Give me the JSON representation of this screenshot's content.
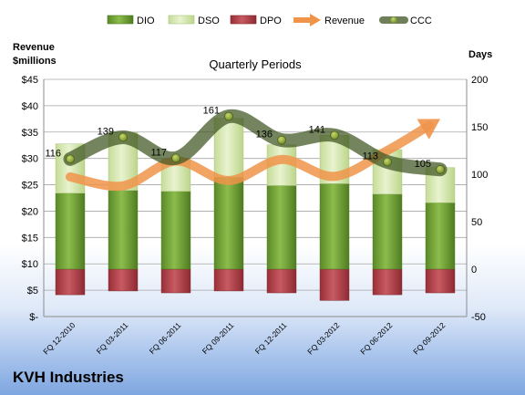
{
  "company": "KVH Industries",
  "chart_data": {
    "type": "combo",
    "title": "Quarterly Periods",
    "left_axis_label": [
      "Revenue",
      "$millions"
    ],
    "right_axis_label": "Days",
    "left_axis": {
      "min": 0,
      "max": 45,
      "step": 5,
      "ticks": [
        "$-",
        "$5",
        "$10",
        "$15",
        "$20",
        "$25",
        "$30",
        "$35",
        "$40",
        "$45"
      ]
    },
    "right_axis": {
      "min": -50,
      "max": 200,
      "step": 50,
      "ticks": [
        "-50",
        "0",
        "50",
        "100",
        "150",
        "200"
      ]
    },
    "categories": [
      "FQ 12-2010",
      "FQ 03-2011",
      "FQ 06-2011",
      "FQ 09-2011",
      "FQ 12-2011",
      "FQ 03-2012",
      "FQ 06-2012",
      "FQ 09-2012"
    ],
    "series": [
      {
        "name": "DIO",
        "type": "stacked-bar",
        "axis": "right",
        "color": "#76a33a",
        "values": [
          80,
          83,
          82,
          97,
          88,
          90,
          79,
          70
        ]
      },
      {
        "name": "DSO",
        "type": "stacked-bar",
        "axis": "right",
        "color": "#d6e8ad",
        "values": [
          52,
          61,
          34,
          62,
          43,
          51,
          47,
          37
        ]
      },
      {
        "name": "DPO",
        "type": "negative-bar",
        "axis": "right",
        "color": "#b3424a",
        "values": [
          -27,
          -23,
          -25,
          -23,
          -25,
          -33,
          -27,
          -25
        ]
      },
      {
        "name": "Revenue",
        "type": "line-arrow",
        "axis": "left",
        "color": "#f0944a",
        "values": [
          26.5,
          24.8,
          29.5,
          25.8,
          29.8,
          26.6,
          31.5,
          37.5
        ]
      },
      {
        "name": "CCC",
        "type": "line",
        "axis": "right",
        "color": "#556b2f",
        "values": [
          116,
          139,
          117,
          161,
          136,
          141,
          113,
          105
        ],
        "labels": [
          "116",
          "139",
          "117",
          "161",
          "136",
          "141",
          "113",
          "105"
        ]
      }
    ],
    "legend": [
      "DIO",
      "DSO",
      "DPO",
      "Revenue",
      "CCC"
    ],
    "legend_position": "top"
  }
}
